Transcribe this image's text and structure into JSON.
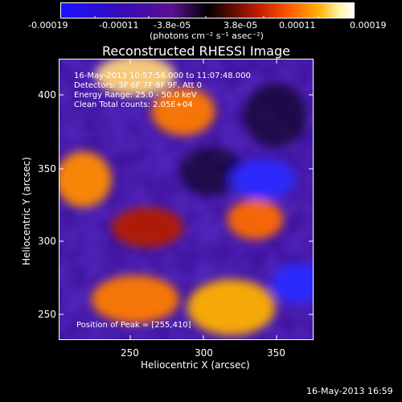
{
  "colorbar": {
    "ticks": [
      "-0.00019",
      "-0.00011",
      "-3.8e-05",
      "3.8e-05",
      "0.00011",
      "0.00019"
    ],
    "units": "(photons cm⁻² s⁻¹ asec⁻²)"
  },
  "plot": {
    "title": "Reconstructed RHESSI Image",
    "time_range": "16-May-2013 10:57:56.000 to 11:07:48.000",
    "detectors": "Detectors: 3F 6F 7F 8F 9F, Att 0",
    "energy": "Energy Range: 25.0 - 50.0 keV",
    "clean": "Clean    Total counts: 2.05E+04",
    "peak": "Position of Peak = [255,410]",
    "xlabel": "Heliocentric X (arcsec)",
    "ylabel": "Heliocentric Y (arcsec)",
    "xticks": [
      "250",
      "300",
      "350"
    ],
    "yticks": [
      "400",
      "350",
      "300",
      "250"
    ]
  },
  "footer": {
    "timestamp": "16-May-2013 16:59"
  },
  "colors": {
    "background": "#000000",
    "text": "#ffffff"
  }
}
